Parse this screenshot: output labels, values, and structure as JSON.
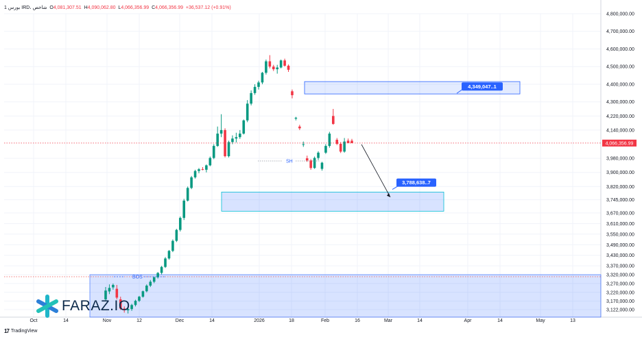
{
  "header": {
    "symbol": "1 بورس IRD، شاخص",
    "open_label": "O",
    "open": "4,081,307.51",
    "high_label": "H",
    "high": "4,090,062.80",
    "low_label": "L",
    "low": "4,066,356.99",
    "close_label": "C",
    "close": "4,066,356.99",
    "change": "+36,537.12 (+0.91%)"
  },
  "brand": {
    "logo_text": "FARAZ.IO",
    "footer": "TradingView"
  },
  "colors": {
    "up": "#089981",
    "down": "#f23645",
    "zone": "#2962ff",
    "price": "#f23645"
  },
  "chart_data": {
    "type": "candlestick",
    "title": "",
    "y_ticks": [
      "4,800,000.00",
      "4,700,000.00",
      "4,600,000.00",
      "4,500,000.00",
      "4,400,000.00",
      "4,300,000.00",
      "4,220,000.00",
      "4,140,000.00",
      "3,980,000.00",
      "3,900,000.00",
      "3,820,000.00",
      "3,745,000.00",
      "3,670,000.00",
      "3,610,000.00",
      "3,550,000.00",
      "3,490,000.00",
      "3,430,000.00",
      "3,370,000.00",
      "3,320,000.00",
      "3,270,000.00",
      "3,220,000.00",
      "3,170,000.00",
      "3,122,000.00"
    ],
    "x_ticks": [
      "Oct",
      "14",
      "Nov",
      "12",
      "Dec",
      "14",
      "2026",
      "18",
      "Feb",
      "16",
      "Mar",
      "14",
      "Apr",
      "14",
      "May",
      "13"
    ],
    "current_price": "4,066,356.99",
    "annotations": {
      "bos": "BOS",
      "sh": "SH",
      "upper_target": "4,349,047..1",
      "lower_target": "3,788,638..7"
    },
    "candles": [
      [
        3180000,
        3250000,
        3170000,
        3230000
      ],
      [
        3225000,
        3265000,
        3210000,
        3245000
      ],
      [
        3248000,
        3270000,
        3235000,
        3262000
      ],
      [
        3240000,
        3262000,
        3180000,
        3190000
      ],
      [
        3180000,
        3195000,
        3120000,
        3128000
      ],
      [
        3128000,
        3140000,
        3105000,
        3120000
      ],
      [
        3118000,
        3135000,
        3100000,
        3125000
      ],
      [
        3125000,
        3155000,
        3115000,
        3148000
      ],
      [
        3148000,
        3178000,
        3140000,
        3172000
      ],
      [
        3172000,
        3200000,
        3165000,
        3195000
      ],
      [
        3195000,
        3230000,
        3190000,
        3226000
      ],
      [
        3226000,
        3265000,
        3220000,
        3258000
      ],
      [
        3258000,
        3290000,
        3250000,
        3280000
      ],
      [
        3280000,
        3310000,
        3272000,
        3305000
      ],
      [
        3305000,
        3335000,
        3298000,
        3330000
      ],
      [
        3330000,
        3370000,
        3322000,
        3364000
      ],
      [
        3364000,
        3420000,
        3358000,
        3412000
      ],
      [
        3412000,
        3460000,
        3405000,
        3455000
      ],
      [
        3455000,
        3520000,
        3448000,
        3512000
      ],
      [
        3512000,
        3580000,
        3505000,
        3574000
      ],
      [
        3574000,
        3650000,
        3565000,
        3642000
      ],
      [
        3642000,
        3750000,
        3630000,
        3740000
      ],
      [
        3740000,
        3820000,
        3735000,
        3812000
      ],
      [
        3812000,
        3880000,
        3805000,
        3872000
      ],
      [
        3872000,
        3915000,
        3865000,
        3908000
      ],
      [
        3908000,
        3925000,
        3895000,
        3918000
      ],
      [
        3918000,
        3930000,
        3912000,
        3915000
      ],
      [
        3915000,
        3945000,
        3900000,
        3940000
      ],
      [
        3940000,
        3990000,
        3935000,
        3982000
      ],
      [
        3982000,
        4060000,
        3975000,
        4050000
      ],
      [
        4050000,
        4160000,
        4045000,
        4120000
      ],
      [
        4120000,
        4230000,
        4100000,
        4140000
      ],
      [
        4140000,
        4150000,
        3985000,
        3992000
      ],
      [
        3992000,
        4080000,
        3985000,
        4072000
      ],
      [
        4072000,
        4110000,
        4060000,
        4092000
      ],
      [
        4092000,
        4125000,
        4070000,
        4100000
      ],
      [
        4100000,
        4140000,
        4090000,
        4120000
      ],
      [
        4120000,
        4200000,
        4115000,
        4195000
      ],
      [
        4195000,
        4310000,
        4185000,
        4290000
      ],
      [
        4290000,
        4365000,
        4280000,
        4350000
      ],
      [
        4350000,
        4400000,
        4340000,
        4385000
      ],
      [
        4385000,
        4420000,
        4370000,
        4410000
      ],
      [
        4410000,
        4470000,
        4400000,
        4465000
      ],
      [
        4465000,
        4540000,
        4455000,
        4530000
      ],
      [
        4530000,
        4565000,
        4490000,
        4500000
      ],
      [
        4500000,
        4510000,
        4475000,
        4485000
      ],
      [
        4485000,
        4510000,
        4460000,
        4495000
      ],
      [
        4495000,
        4540000,
        4490000,
        4535000
      ],
      [
        4535000,
        4545000,
        4500000,
        4505000
      ],
      [
        4505000,
        4512000,
        4470000,
        4482000
      ],
      [
        4360000,
        4370000,
        4320000,
        4338000
      ],
      [
        4205000,
        4215000,
        4195000,
        4210000
      ],
      [
        4160000,
        4170000,
        4140000,
        4150000
      ],
      [
        4060000,
        4075000,
        4045000,
        4060000
      ],
      [
        3980000,
        3995000,
        3960000,
        3968000
      ],
      [
        3968000,
        3975000,
        3915000,
        3925000
      ],
      [
        3925000,
        3990000,
        3920000,
        3982000
      ],
      [
        3982000,
        4020000,
        3970000,
        4012000
      ],
      [
        3920000,
        3960000,
        3910000,
        3955000
      ],
      [
        4012000,
        4060000,
        4005000,
        4050000
      ],
      [
        4050000,
        4130000,
        4040000,
        4120000
      ],
      [
        4220000,
        4260000,
        4170000,
        4175000
      ],
      [
        4085000,
        4095000,
        4055000,
        4062000
      ],
      [
        4062000,
        4072000,
        4010000,
        4018000
      ],
      [
        4018000,
        4095000,
        4012000,
        4075000
      ],
      [
        4080000,
        4092000,
        4066000,
        4066000
      ],
      [
        4080000,
        4090000,
        4066000,
        4066000
      ]
    ]
  }
}
